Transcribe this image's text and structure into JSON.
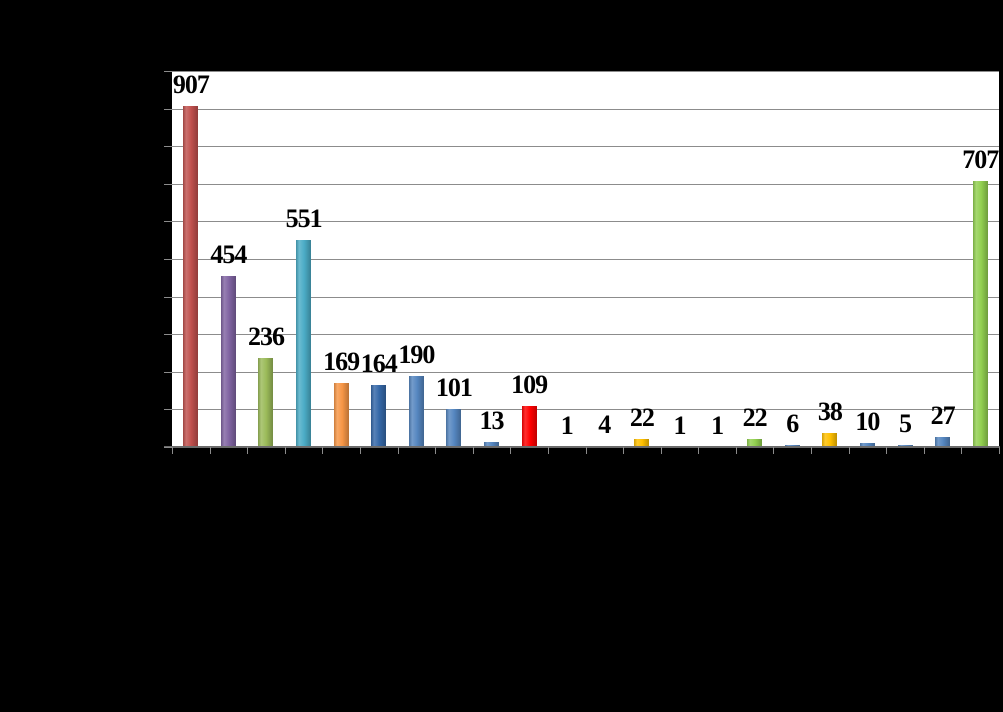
{
  "window": {
    "background": "#000000"
  },
  "chart": {
    "plot_background": "#FFFFFF",
    "gridline_color": "#8C8C8C",
    "axis_line_color": "#6B6B6B",
    "tick_color": "#8C8C8C",
    "label_color": "#000000"
  },
  "chart_data": {
    "type": "bar",
    "values": [
      907,
      454,
      236,
      551,
      169,
      164,
      190,
      101,
      13,
      109,
      1,
      4,
      22,
      1,
      1,
      22,
      6,
      38,
      10,
      5,
      27,
      707
    ],
    "data_labels": [
      "907",
      "454",
      "236",
      "551",
      "169",
      "164",
      "190",
      "101",
      "13",
      "109",
      "1",
      "4",
      "22",
      "1",
      "1",
      "22",
      "6",
      "38",
      "10",
      "5",
      "27",
      "707"
    ],
    "bar_colors": [
      "#C0504D",
      "#8064A2",
      "#9BBB59",
      "#4BACC6",
      "#F79646",
      "#3568A8",
      "#5586C0",
      "#5586C0",
      "#5586C0",
      "#FF0000",
      "#5586C0",
      "#5586C0",
      "#FFC000",
      "#5586C0",
      "#5586C0",
      "#92D050",
      "#5586C0",
      "#FFC000",
      "#5586C0",
      "#5586C0",
      "#5586C0",
      "#92D050"
    ],
    "ylim": [
      0,
      1000
    ],
    "gridline_step": 100,
    "grid": true,
    "legend": false,
    "axis_tick_labels_visible": false,
    "title_visible": false
  }
}
